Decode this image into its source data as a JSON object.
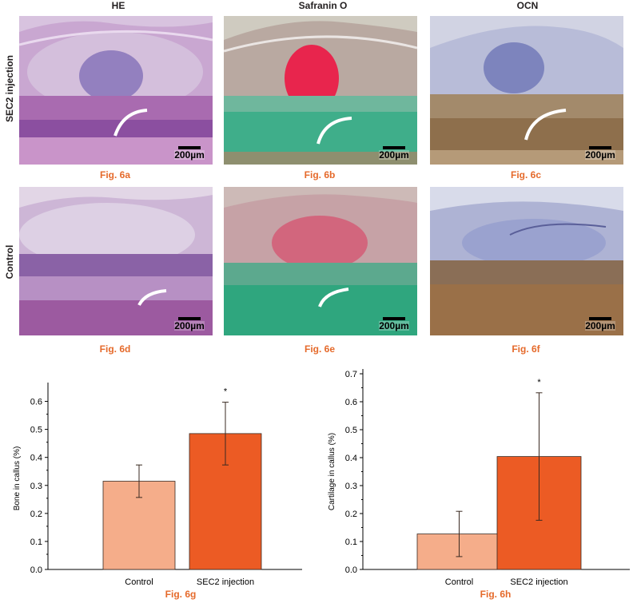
{
  "columns": [
    "HE",
    "Safranin O",
    "OCN"
  ],
  "rows": [
    "SEC2 injection",
    "Control"
  ],
  "scale_label": "200µm",
  "panel_captions": [
    "Fig. 6a",
    "Fig. 6b",
    "Fig. 6c",
    "Fig. 6d",
    "Fig. 6e",
    "Fig. 6f"
  ],
  "caption_color": "#e56a2b",
  "stain_colors": {
    "HE": "#b58cc0",
    "Safranin O": "#3fae8a",
    "Safranin O cartilage": "#e8254d",
    "OCN": "#8f9bc9",
    "OCN bone": "#9a7048"
  },
  "chart_data": [
    {
      "type": "bar",
      "categories": [
        "Control",
        "SEC2 injection"
      ],
      "values": [
        0.315,
        0.485
      ],
      "errors": [
        0.058,
        0.112
      ],
      "colors": [
        "#f5ad8a",
        "#ec5b24"
      ],
      "significance": [
        "",
        "*"
      ],
      "ylabel": "Bone in callus (%)",
      "ylim": [
        0,
        0.65
      ],
      "yticks": [
        "0.0",
        "0.1",
        "0.2",
        "0.3",
        "0.4",
        "0.5",
        "0.6"
      ],
      "caption": "Fig. 6g",
      "grid": false
    },
    {
      "type": "bar",
      "categories": [
        "Control",
        "SEC2 injection"
      ],
      "values": [
        0.127,
        0.404
      ],
      "errors": [
        0.081,
        0.228
      ],
      "colors": [
        "#f5ad8a",
        "#ec5b24"
      ],
      "significance": [
        "",
        "*"
      ],
      "ylabel": "Cartilage in callus (%)",
      "ylim": [
        0,
        0.7
      ],
      "yticks": [
        "0.0",
        "0.1",
        "0.2",
        "0.3",
        "0.4",
        "0.5",
        "0.6",
        "0.7"
      ],
      "caption": "Fig. 6h",
      "grid": false
    }
  ]
}
